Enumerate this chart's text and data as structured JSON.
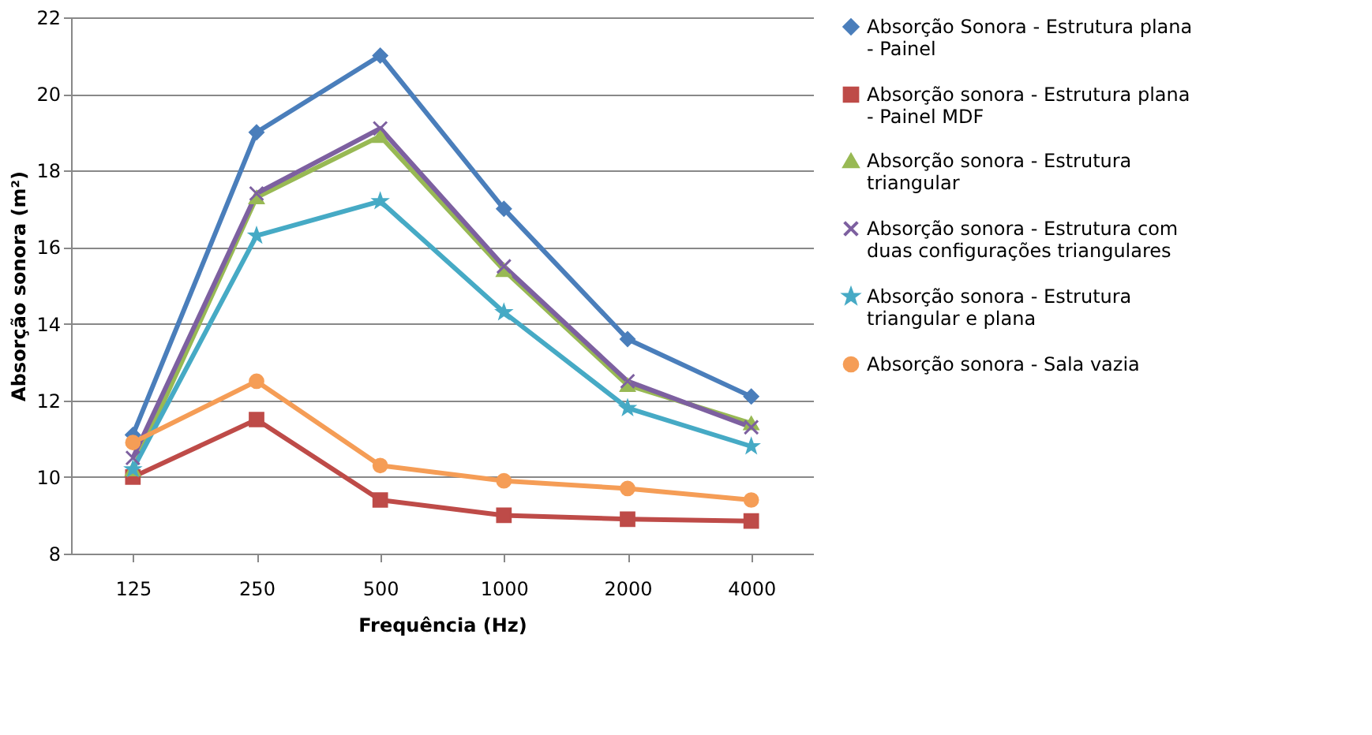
{
  "chart_data": {
    "type": "line",
    "xlabel": "Frequência (Hz)",
    "ylabel": "Absorção sonora (m²)",
    "categories": [
      "125",
      "250",
      "500",
      "1000",
      "2000",
      "4000"
    ],
    "ylim": [
      8,
      22
    ],
    "yticks": [
      8,
      10,
      12,
      14,
      16,
      18,
      20,
      22
    ],
    "grid": "y",
    "legend": "right",
    "line_style": "solid",
    "series": [
      {
        "name": "Absorção Sonora - Estrutura plana - Painel",
        "color": "#4a7ebb",
        "marker": "diamond",
        "values": [
          11.1,
          19.0,
          21.0,
          17.0,
          13.6,
          12.1
        ]
      },
      {
        "name": "Absorção  sonora - Estrutura plana - Painel MDF",
        "color": "#be4b48",
        "marker": "square",
        "values": [
          10.0,
          11.5,
          9.4,
          9.0,
          8.9,
          8.85
        ]
      },
      {
        "name": "Absorção sonora  - Estrutura triangular",
        "color": "#98b954",
        "marker": "triangle",
        "values": [
          10.2,
          17.3,
          18.9,
          15.4,
          12.4,
          11.4
        ]
      },
      {
        "name": "Absorção sonora - Estrutura com duas configurações triangulares",
        "color": "#7d60a0",
        "marker": "cross",
        "values": [
          10.5,
          17.4,
          19.1,
          15.5,
          12.5,
          11.3
        ]
      },
      {
        "name": "Absorção sonora - Estrutura triangular e plana",
        "color": "#46aac5",
        "marker": "star",
        "values": [
          10.2,
          16.3,
          17.2,
          14.3,
          11.8,
          10.8
        ]
      },
      {
        "name": "Absorção sonora  - Sala vazia",
        "color": "#f59d56",
        "marker": "circle",
        "values": [
          10.9,
          12.5,
          10.3,
          9.9,
          9.7,
          9.4
        ]
      }
    ]
  }
}
